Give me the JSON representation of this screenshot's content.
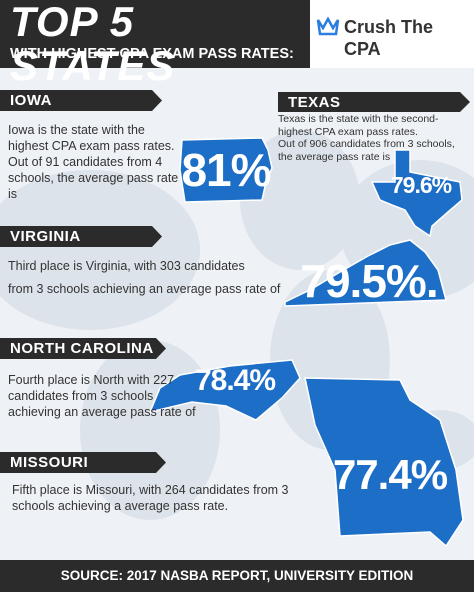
{
  "header": {
    "title": "TOP 5 STATES",
    "subtitle": "WITH HIGHEST CPA EXAM PASS RATES:",
    "logo": "Crush The CPA"
  },
  "states": [
    {
      "name": "IOWA",
      "paragraphs": [
        "Iowa is the state with the highest CPA exam pass rates.",
        "Out of 91 candidates from 4 schools, the average pass rate is"
      ],
      "rate": "81%"
    },
    {
      "name": "TEXAS",
      "paragraphs": [
        "Texas is the state with the second-highest CPA exam pass rates.",
        "Out of 906 candidates from 3 schools, the average pass rate is"
      ],
      "rate": "79.6%"
    },
    {
      "name": "VIRGINIA",
      "paragraphs": [
        "Third place is Virginia, with 303 candidates",
        "from 3 schools achieving an average pass rate of"
      ],
      "rate": "79.5%."
    },
    {
      "name": "NORTH CAROLINA",
      "paragraphs": [
        "Fourth place is North with 227 candidates from 3 schools achieving an average pass rate of"
      ],
      "rate": "78.4%"
    },
    {
      "name": "MISSOURI",
      "paragraphs": [
        "Fifth place is Missouri, with 264 candidates from 3 schools achieving a average pass rate."
      ],
      "rate": "77.4%"
    }
  ],
  "footer": "SOURCE: 2017 NASBA REPORT, UNIVERSITY EDITION"
}
